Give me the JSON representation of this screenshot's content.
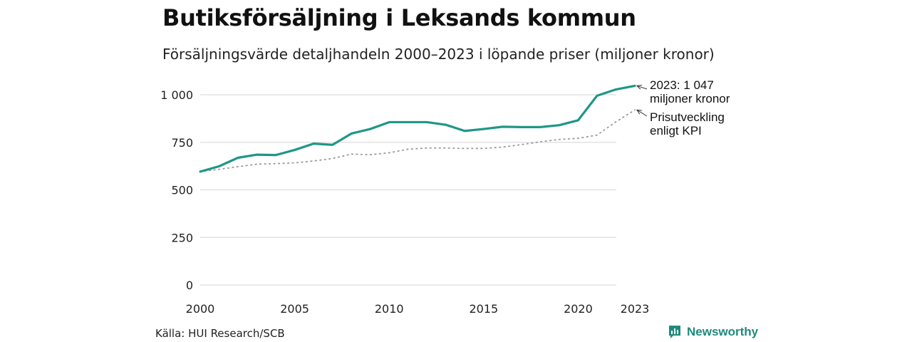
{
  "title": "Butiksförsäljning i Leksands kommun",
  "subtitle": "Försäljningsvärde detaljhandeln 2000–2023 i löpande priser (miljoner kronor)",
  "source": "Källa: HUI Research/SCB",
  "brand": {
    "name": "Newsworthy",
    "icon": "newsworthy-logo-icon",
    "color": "#1f8a7d"
  },
  "chart_data": {
    "type": "line",
    "x": [
      2000,
      2001,
      2002,
      2003,
      2004,
      2005,
      2006,
      2007,
      2008,
      2009,
      2010,
      2011,
      2012,
      2013,
      2014,
      2015,
      2016,
      2017,
      2018,
      2019,
      2020,
      2021,
      2022,
      2023
    ],
    "series": [
      {
        "name": "Försäljning",
        "color": "#1f9688",
        "style": "solid",
        "values": [
          596,
          624,
          669,
          685,
          683,
          710,
          743,
          737,
          796,
          820,
          856,
          856,
          856,
          842,
          810,
          820,
          832,
          830,
          830,
          840,
          866,
          995,
          1028,
          1047
        ],
        "annotation": [
          "2023: 1 047",
          "miljoner kronor"
        ]
      },
      {
        "name": "Prisutveckling enligt KPI",
        "color": "#999999",
        "style": "dotted",
        "values": [
          596,
          608,
          622,
          635,
          638,
          642,
          652,
          665,
          688,
          685,
          695,
          714,
          720,
          720,
          718,
          718,
          725,
          738,
          753,
          765,
          771,
          788,
          858,
          920
        ],
        "annotation": [
          "Prisutveckling",
          "enligt KPI"
        ]
      }
    ],
    "ylim": [
      0,
      1050
    ],
    "yticks": [
      0,
      250,
      500,
      750,
      1000
    ],
    "ytick_labels": [
      "0",
      "250",
      "500",
      "750",
      "1 000"
    ],
    "xticks": [
      2000,
      2005,
      2010,
      2015,
      2020,
      2023
    ],
    "xtick_labels": [
      "2000",
      "2005",
      "2010",
      "2015",
      "2020",
      "2023"
    ],
    "grid": "horizontal",
    "xlabel": "",
    "ylabel": ""
  }
}
